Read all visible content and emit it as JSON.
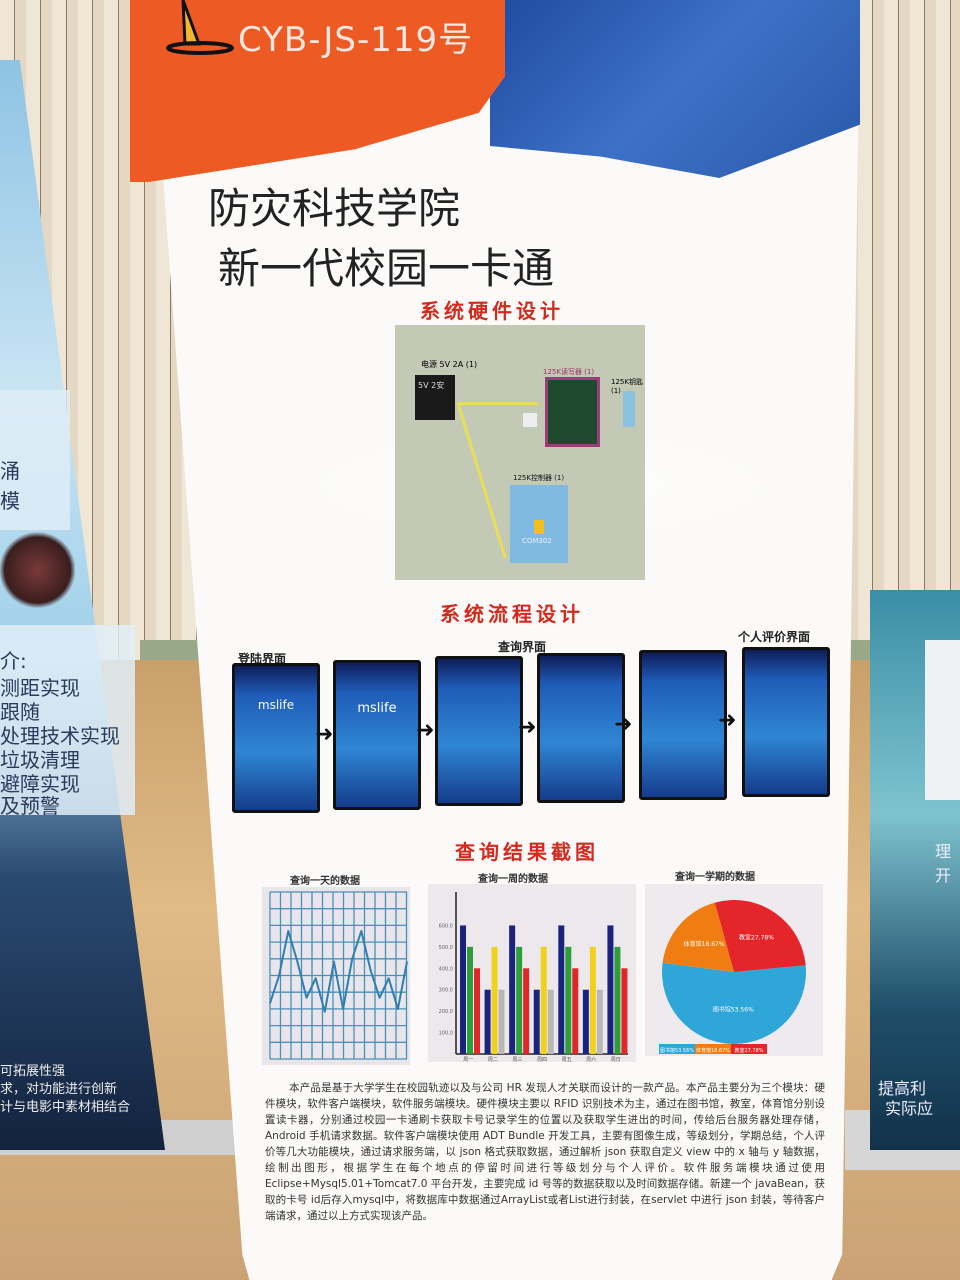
{
  "header": {
    "code": "CYB-JS-119号"
  },
  "title": {
    "line1": "防灾科技学院",
    "line2": "新一代校园一卡通"
  },
  "hardware": {
    "heading": "系统硬件设计",
    "labels": [
      "电源 5V 2A (1)",
      "5V 2安",
      "125K读写器 (1)",
      "125K钥匙 (1)",
      "125K控制器 (1)",
      "COM302"
    ]
  },
  "flow": {
    "heading": "系统流程设计",
    "labels": {
      "login": "登陆界面",
      "query": "查询界面",
      "evaluation": "个人评价界面"
    },
    "app_name": "mslife",
    "arrow": "➜"
  },
  "results": {
    "heading": "查询结果截图",
    "captions": [
      "查询一天的数据",
      "查询一周的数据",
      "查询一学期的数据"
    ]
  },
  "chart_data": [
    {
      "type": "line",
      "title": "查询一天的数据",
      "grid": true,
      "series": [
        {
          "values": [
            2,
            3,
            4.6,
            3.5,
            2.2,
            2.9,
            1.7,
            3.5,
            1.8,
            3.6,
            4.6,
            3.2,
            2.2,
            2.9,
            1.8,
            3.5
          ]
        }
      ]
    },
    {
      "type": "bar",
      "title": "查询一周的数据",
      "ylim": [
        0,
        700
      ],
      "yticks": [
        "100.0",
        "200.0",
        "300.0",
        "400.0",
        "500.0",
        "600.0"
      ],
      "categories": [
        "周一",
        "周二",
        "周三",
        "周四",
        "周五",
        "周六",
        "周日"
      ],
      "groups": [
        {
          "values": [
            600,
            500,
            400
          ],
          "colors": [
            "#1a237e",
            "#2e9e3a",
            "#e0282a"
          ]
        },
        {
          "values": [
            300,
            500,
            300
          ],
          "colors": [
            "#1a237e",
            "#f0d21e",
            "#b8b8b8"
          ]
        },
        {
          "values": [
            600,
            500,
            400
          ],
          "colors": [
            "#1a237e",
            "#2e9e3a",
            "#e0282a"
          ]
        },
        {
          "values": [
            300,
            500,
            300
          ],
          "colors": [
            "#1a237e",
            "#f0d21e",
            "#b8b8b8"
          ]
        },
        {
          "values": [
            600,
            500,
            400
          ],
          "colors": [
            "#1a237e",
            "#2e9e3a",
            "#e0282a"
          ]
        },
        {
          "values": [
            300,
            500,
            300
          ],
          "colors": [
            "#1a237e",
            "#f0d21e",
            "#b8b8b8"
          ]
        },
        {
          "values": [
            600,
            500,
            400
          ],
          "colors": [
            "#1a237e",
            "#2e9e3a",
            "#e0282a"
          ]
        }
      ]
    },
    {
      "type": "pie",
      "title": "查询一学期的数据",
      "slices": [
        {
          "label": "图书馆53.56%",
          "value": 53.56,
          "color": "#2fa6d8"
        },
        {
          "label": "体育馆18.67%",
          "value": 18.67,
          "color": "#f07d12"
        },
        {
          "label": "教室27.78%",
          "value": 27.78,
          "color": "#e4252a"
        }
      ]
    }
  ],
  "description": "本产品是基于大学学生在校园轨迹以及与公司 HR 发现人才关联而设计的一款产品。本产品主要分为三个模块：硬件模块，软件客户端模块，软件服务端模块。硬件模块主要以 RFID 识别技术为主，通过在图书馆，教室，体育馆分别设置读卡器，分别通过校园一卡通刷卡获取卡号记录学生的位置以及获取学生进出的时间，传给后台服务器处理存储，Android 手机请求数据。软件客户端模块使用 ADT Bundle 开发工具，主要有图像生成，等级划分，学期总结，个人评价等几大功能模块，通过请求服务端，以 json 格式获取数据，通过解析 json 获取自定义 view 中的 x 轴与 y 轴数据，绘制出图形，根据学生在每个地点的停留时间进行等级划分与个人评价。软件服务端模块通过使用 Eclipse+Mysql5.01+Tomcat7.0 平台开发，主要完成 id 号等的数据获取以及时间数据存储。新建一个 javaBean，获取的卡号 id后存入mysql中，将数据库中数据通过ArrayList或者List进行封装，在servlet 中进行 json 封装，等待客户端请求，通过以上方式实现该产品。",
  "neighbor_left": {
    "lines_top": [
      "涌",
      "模"
    ],
    "heading": "介:",
    "lines": [
      "测距实现",
      "跟随",
      "处理技术实现",
      "垃圾清理",
      "避障实现",
      "及预警"
    ],
    "footer": [
      "可拓展性强",
      "求，对功能进行创新",
      "计与电影中素材相结合"
    ]
  },
  "neighbor_right": {
    "lines": [
      "理",
      "开",
      "提高利",
      "实际应"
    ]
  }
}
